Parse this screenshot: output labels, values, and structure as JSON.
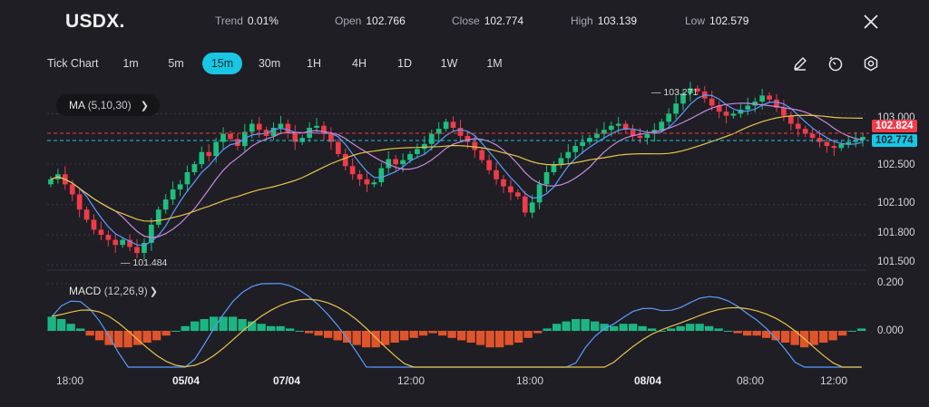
{
  "header": {
    "symbol": "USDX.",
    "stats": [
      {
        "key": "Trend",
        "value": "0.01%"
      },
      {
        "key": "Open",
        "value": "102.766"
      },
      {
        "key": "Close",
        "value": "102.774"
      },
      {
        "key": "High",
        "value": "103.139"
      },
      {
        "key": "Low",
        "value": "102.579"
      }
    ]
  },
  "toolbar": {
    "chart_type": "Tick Chart",
    "timeframes": [
      "1m",
      "5m",
      "15m",
      "30m",
      "1H",
      "4H",
      "1D",
      "1W",
      "1M"
    ],
    "active_timeframe": "15m",
    "tools": [
      "pencil-icon",
      "timer-icon",
      "settings-hex-icon"
    ]
  },
  "indicators": {
    "ma": {
      "name": "MA",
      "params": "(5,10,30)"
    },
    "macd": {
      "name": "MACD",
      "params": "(12,26,9)"
    }
  },
  "price_axis": {
    "labels": [
      "103.000",
      "102.500",
      "102.100",
      "101.800",
      "101.500"
    ],
    "tag_open": "102.824",
    "tag_close": "102.774",
    "high_annotation": "103.271",
    "low_annotation": "101.484"
  },
  "macd_axis": {
    "labels": [
      "0.200",
      "0.000"
    ]
  },
  "time_axis": {
    "labels": [
      {
        "text": "18:00",
        "bold": false
      },
      {
        "text": "05/04",
        "bold": true
      },
      {
        "text": "07/04",
        "bold": true
      },
      {
        "text": "12:00",
        "bold": false
      },
      {
        "text": "18:00",
        "bold": false
      },
      {
        "text": "08/04",
        "bold": true
      },
      {
        "text": "08:00",
        "bold": false
      },
      {
        "text": "12:00",
        "bold": false
      }
    ]
  },
  "colors": {
    "up": "#1dbf7e",
    "down": "#ef3b4a",
    "ma5": "#5b9bff",
    "ma10": "#c58ae0",
    "ma30": "#e6c44a",
    "macd_pos": "#1bb583",
    "macd_neg": "#e0542b",
    "accent": "#19c6e3"
  },
  "chart_data": {
    "type": "candlestick",
    "ylim": [
      101.45,
      103.3
    ],
    "close_series": [
      102.35,
      102.4,
      102.3,
      102.2,
      102.05,
      101.95,
      101.85,
      101.8,
      101.75,
      101.7,
      101.75,
      101.68,
      101.62,
      101.72,
      101.9,
      102.05,
      102.15,
      102.25,
      102.3,
      102.42,
      102.5,
      102.62,
      102.58,
      102.72,
      102.8,
      102.75,
      102.68,
      102.82,
      102.9,
      102.84,
      102.78,
      102.86,
      102.9,
      102.82,
      102.72,
      102.76,
      102.86,
      102.88,
      102.8,
      102.72,
      102.6,
      102.48,
      102.4,
      102.35,
      102.3,
      102.32,
      102.46,
      102.55,
      102.5,
      102.54,
      102.6,
      102.65,
      102.7,
      102.8,
      102.85,
      102.92,
      102.86,
      102.78,
      102.72,
      102.64,
      102.54,
      102.44,
      102.35,
      102.28,
      102.22,
      102.18,
      102.02,
      102.12,
      102.3,
      102.42,
      102.5,
      102.56,
      102.62,
      102.68,
      102.72,
      102.76,
      102.8,
      102.84,
      102.88,
      102.9,
      102.84,
      102.78,
      102.76,
      102.8,
      102.84,
      102.92,
      103.0,
      103.1,
      103.2,
      103.25,
      103.22,
      103.15,
      103.08,
      103.02,
      102.98,
      103.0,
      103.04,
      103.08,
      103.12,
      103.18,
      103.14,
      103.06,
      102.98,
      102.9,
      102.85,
      102.8,
      102.76,
      102.72,
      102.68,
      102.66,
      102.7,
      102.72,
      102.74,
      102.77
    ],
    "macd_histogram": [
      0.06,
      0.05,
      0.03,
      0.01,
      -0.02,
      -0.04,
      -0.06,
      -0.07,
      -0.07,
      -0.06,
      -0.05,
      -0.04,
      -0.02,
      0.0,
      0.02,
      0.04,
      0.05,
      0.06,
      0.06,
      0.06,
      0.05,
      0.04,
      0.03,
      0.02,
      0.02,
      0.01,
      0.0,
      -0.01,
      -0.02,
      -0.03,
      -0.04,
      -0.05,
      -0.06,
      -0.07,
      -0.07,
      -0.06,
      -0.05,
      -0.04,
      -0.03,
      -0.02,
      -0.01,
      -0.02,
      -0.03,
      -0.04,
      -0.05,
      -0.06,
      -0.07,
      -0.07,
      -0.06,
      -0.05,
      -0.03,
      -0.01,
      0.01,
      0.03,
      0.04,
      0.05,
      0.05,
      0.04,
      0.03,
      0.02,
      0.03,
      0.03,
      0.02,
      0.01,
      0.0,
      0.01,
      0.02,
      0.03,
      0.03,
      0.02,
      0.01,
      0.0,
      -0.01,
      -0.02,
      -0.02,
      -0.03,
      -0.04,
      -0.05,
      -0.06,
      -0.07,
      -0.06,
      -0.05,
      -0.04,
      -0.02,
      0.0,
      0.01
    ]
  }
}
